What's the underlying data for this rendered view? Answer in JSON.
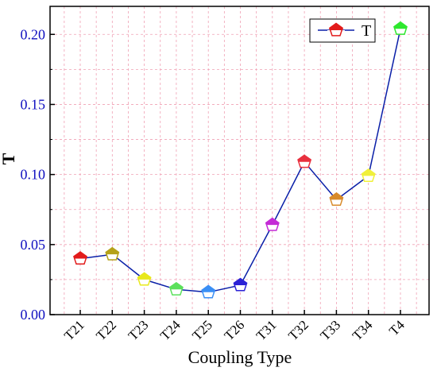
{
  "chart_data": {
    "type": "line",
    "xlabel": "Coupling Type",
    "ylabel": "T",
    "categories": [
      "T21",
      "T22",
      "T23",
      "T24",
      "T25",
      "T26",
      "T31",
      "T32",
      "T33",
      "T34",
      "T4"
    ],
    "series": [
      {
        "name": "T",
        "values": [
          0.04,
          0.043,
          0.025,
          0.018,
          0.016,
          0.021,
          0.064,
          0.109,
          0.082,
          0.099,
          0.204
        ],
        "line_color": "#0a1fa8",
        "marker_colors": [
          "#e21b1b",
          "#b5a21a",
          "#e8e81a",
          "#5be05b",
          "#3a8ff5",
          "#2b22d6",
          "#c42bd6",
          "#e8303e",
          "#d88a2a",
          "#f0f03a",
          "#2ee82e"
        ]
      }
    ],
    "ylim": [
      0.0,
      0.22
    ],
    "yticks": [
      "0.00",
      "0.05",
      "0.10",
      "0.15",
      "0.20"
    ],
    "grid": true,
    "legend_position": "top-right"
  }
}
